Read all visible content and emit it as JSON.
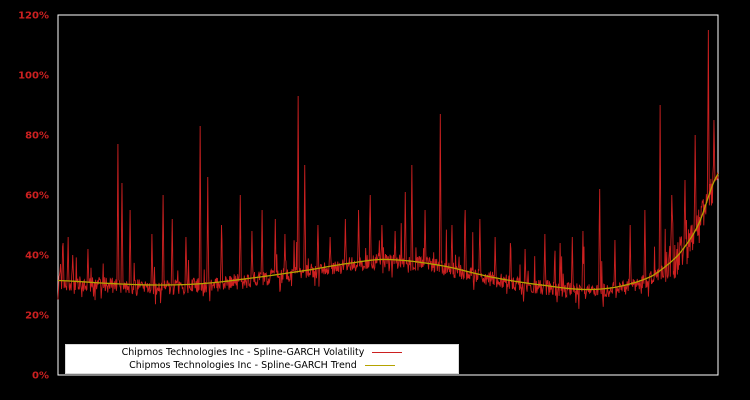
{
  "chart_data": {
    "type": "line",
    "title": "",
    "xlabel": "",
    "ylabel": "",
    "ylim": [
      0,
      120
    ],
    "y_ticks": [
      "0%",
      "20%",
      "40%",
      "60%",
      "80%",
      "100%",
      "120%"
    ],
    "y_tick_values": [
      0,
      20,
      40,
      60,
      80,
      100,
      120
    ],
    "x_tick_labels_visible": false,
    "grid": false,
    "legend_position": "bottom-center",
    "background_color": "#000000",
    "frame_color": "#ffffff",
    "tick_label_color": "#cc2020",
    "series": [
      {
        "name": "volatility",
        "label": "Chipmos Technologies Inc - Spline-GARCH Volatility",
        "color": "#cc2020",
        "style": "spiky",
        "points": 1300,
        "noise_amplitude": 2.6,
        "baseline_offset": -0.6,
        "spikes": [
          [
            0.004,
            37
          ],
          [
            0.008,
            44
          ],
          [
            0.015,
            46
          ],
          [
            0.022,
            40
          ],
          [
            0.045,
            42
          ],
          [
            0.091,
            77
          ],
          [
            0.097,
            64
          ],
          [
            0.109,
            55
          ],
          [
            0.142,
            47
          ],
          [
            0.159,
            60
          ],
          [
            0.173,
            52
          ],
          [
            0.194,
            46
          ],
          [
            0.215,
            83
          ],
          [
            0.227,
            66
          ],
          [
            0.248,
            50
          ],
          [
            0.276,
            60
          ],
          [
            0.294,
            48
          ],
          [
            0.309,
            55
          ],
          [
            0.329,
            52
          ],
          [
            0.344,
            47
          ],
          [
            0.364,
            93
          ],
          [
            0.374,
            70
          ],
          [
            0.394,
            50
          ],
          [
            0.412,
            46
          ],
          [
            0.435,
            52
          ],
          [
            0.455,
            55
          ],
          [
            0.473,
            60
          ],
          [
            0.491,
            50
          ],
          [
            0.511,
            48
          ],
          [
            0.526,
            61
          ],
          [
            0.536,
            70
          ],
          [
            0.556,
            55
          ],
          [
            0.579,
            87
          ],
          [
            0.597,
            50
          ],
          [
            0.617,
            55
          ],
          [
            0.639,
            52
          ],
          [
            0.662,
            46
          ],
          [
            0.685,
            44
          ],
          [
            0.708,
            42
          ],
          [
            0.738,
            47
          ],
          [
            0.761,
            44
          ],
          [
            0.779,
            46
          ],
          [
            0.795,
            48
          ],
          [
            0.821,
            62
          ],
          [
            0.844,
            45
          ],
          [
            0.867,
            50
          ],
          [
            0.889,
            55
          ],
          [
            0.912,
            90
          ],
          [
            0.93,
            60
          ],
          [
            0.95,
            65
          ],
          [
            0.965,
            80
          ],
          [
            0.985,
            115
          ],
          [
            0.994,
            85
          ]
        ]
      },
      {
        "name": "trend",
        "label": "Chipmos Technologies Inc - Spline-GARCH Trend",
        "color": "#b5a300",
        "style": "smooth",
        "trend_points": [
          [
            0.0,
            31.5
          ],
          [
            0.08,
            30.5
          ],
          [
            0.15,
            30.0
          ],
          [
            0.22,
            30.5
          ],
          [
            0.3,
            32.5
          ],
          [
            0.38,
            35.0
          ],
          [
            0.45,
            37.5
          ],
          [
            0.5,
            38.5
          ],
          [
            0.58,
            36.5
          ],
          [
            0.66,
            32.5
          ],
          [
            0.74,
            29.8
          ],
          [
            0.8,
            28.5
          ],
          [
            0.85,
            29.5
          ],
          [
            0.9,
            33.0
          ],
          [
            0.94,
            40.0
          ],
          [
            0.97,
            50.0
          ],
          [
            1.0,
            67.0
          ]
        ]
      }
    ]
  }
}
